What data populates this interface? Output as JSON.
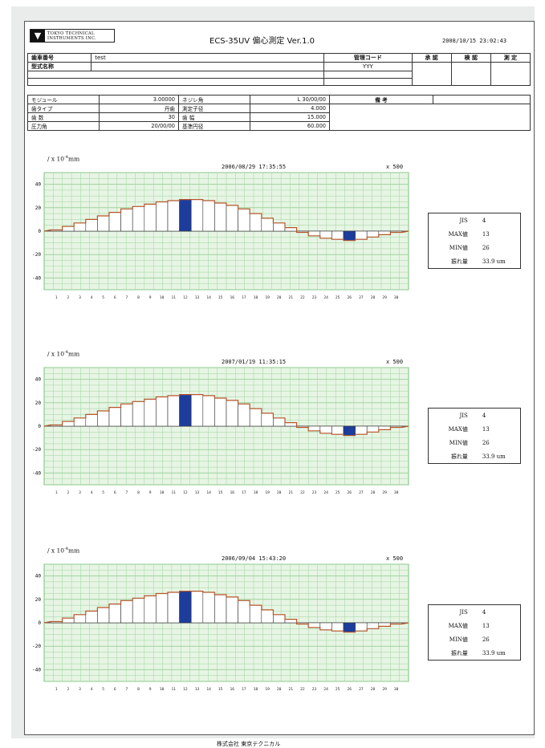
{
  "header": {
    "logo_text_line1": "TOKYO TECHNICAL",
    "logo_text_line2": "INSTRUMENTS INC.",
    "title": "ECS-35UV 偏心測定 Ver.1.0",
    "datetime": "2008/10/15 23:02:43"
  },
  "form": {
    "serial_label": "歯車番号",
    "serial_value": "test",
    "model_label": "型式名称",
    "mgmt_code_label": "管理コード",
    "mgmt_code_value": "YYY",
    "stamp_labels": [
      "承 認",
      "検 認",
      "測 定"
    ],
    "remarks_label": "備 考"
  },
  "specs": {
    "left": [
      {
        "label": "モジュール",
        "value": "3.00000"
      },
      {
        "label": "歯タイプ",
        "value": "丹歯"
      },
      {
        "label": "歯 数",
        "value": "30"
      },
      {
        "label": "圧力角",
        "value": "20/00/00"
      }
    ],
    "right": [
      {
        "label": "ネジレ角",
        "value": "L 30/00/00"
      },
      {
        "label": "測定子径",
        "value": "4.000"
      },
      {
        "label": "歯 幅",
        "value": "15.000"
      },
      {
        "label": "基準円径",
        "value": "60.000"
      }
    ]
  },
  "charts": [
    {
      "unit": "/ x 10",
      "unit_exp": "-4",
      "unit_suffix": "mm",
      "date": "2006/08/29 17:35:55",
      "scale": "x 500",
      "stats": [
        {
          "label": "JIS",
          "value": "4"
        },
        {
          "label": "MAX値",
          "value": "13"
        },
        {
          "label": "MIN値",
          "value": "26"
        },
        {
          "label": "振れ量",
          "value": "33.9 um"
        }
      ]
    },
    {
      "unit": "/ x 10",
      "unit_exp": "-4",
      "unit_suffix": "mm",
      "date": "2007/01/19 11:35:15",
      "scale": "x 500",
      "stats": [
        {
          "label": "JIS",
          "value": "4"
        },
        {
          "label": "MAX値",
          "value": "13"
        },
        {
          "label": "MIN値",
          "value": "26"
        },
        {
          "label": "振れ量",
          "value": "33.9 um"
        }
      ]
    },
    {
      "unit": "/ x 10",
      "unit_exp": "-4",
      "unit_suffix": "mm",
      "date": "2006/09/04 15:43:20",
      "scale": "x 500",
      "stats": [
        {
          "label": "JIS",
          "value": "4"
        },
        {
          "label": "MAX値",
          "value": "13"
        },
        {
          "label": "MIN値",
          "value": "26"
        },
        {
          "label": "振れ量",
          "value": "33.9 um"
        }
      ]
    }
  ],
  "chart_data": {
    "type": "bar",
    "ylim": [
      -50,
      50
    ],
    "yticks": [
      "40",
      "20",
      "0",
      "-20",
      "-40"
    ],
    "categories": [
      "1",
      "2",
      "3",
      "4",
      "5",
      "6",
      "7",
      "8",
      "9",
      "10",
      "11",
      "12",
      "13",
      "14",
      "15",
      "16",
      "17",
      "18",
      "19",
      "20",
      "21",
      "22",
      "23",
      "24",
      "25",
      "26",
      "27",
      "28",
      "29",
      "30"
    ],
    "values": [
      1,
      4,
      7,
      10,
      13,
      16,
      19,
      21,
      23,
      25,
      26,
      27,
      27,
      26,
      24,
      22,
      19,
      15,
      11,
      7,
      3,
      -1,
      -4,
      -6,
      -7,
      -8,
      -7,
      -5,
      -3,
      -1
    ],
    "highlight_max_index": 11,
    "highlight_min_index": 25,
    "colors": {
      "grid": "#9fd39f",
      "plot_bg": "#e7f5e4",
      "curve": "#b5562a",
      "highlight": "#1c3d9c"
    }
  },
  "footer": "株式会社 東京テクニカル"
}
